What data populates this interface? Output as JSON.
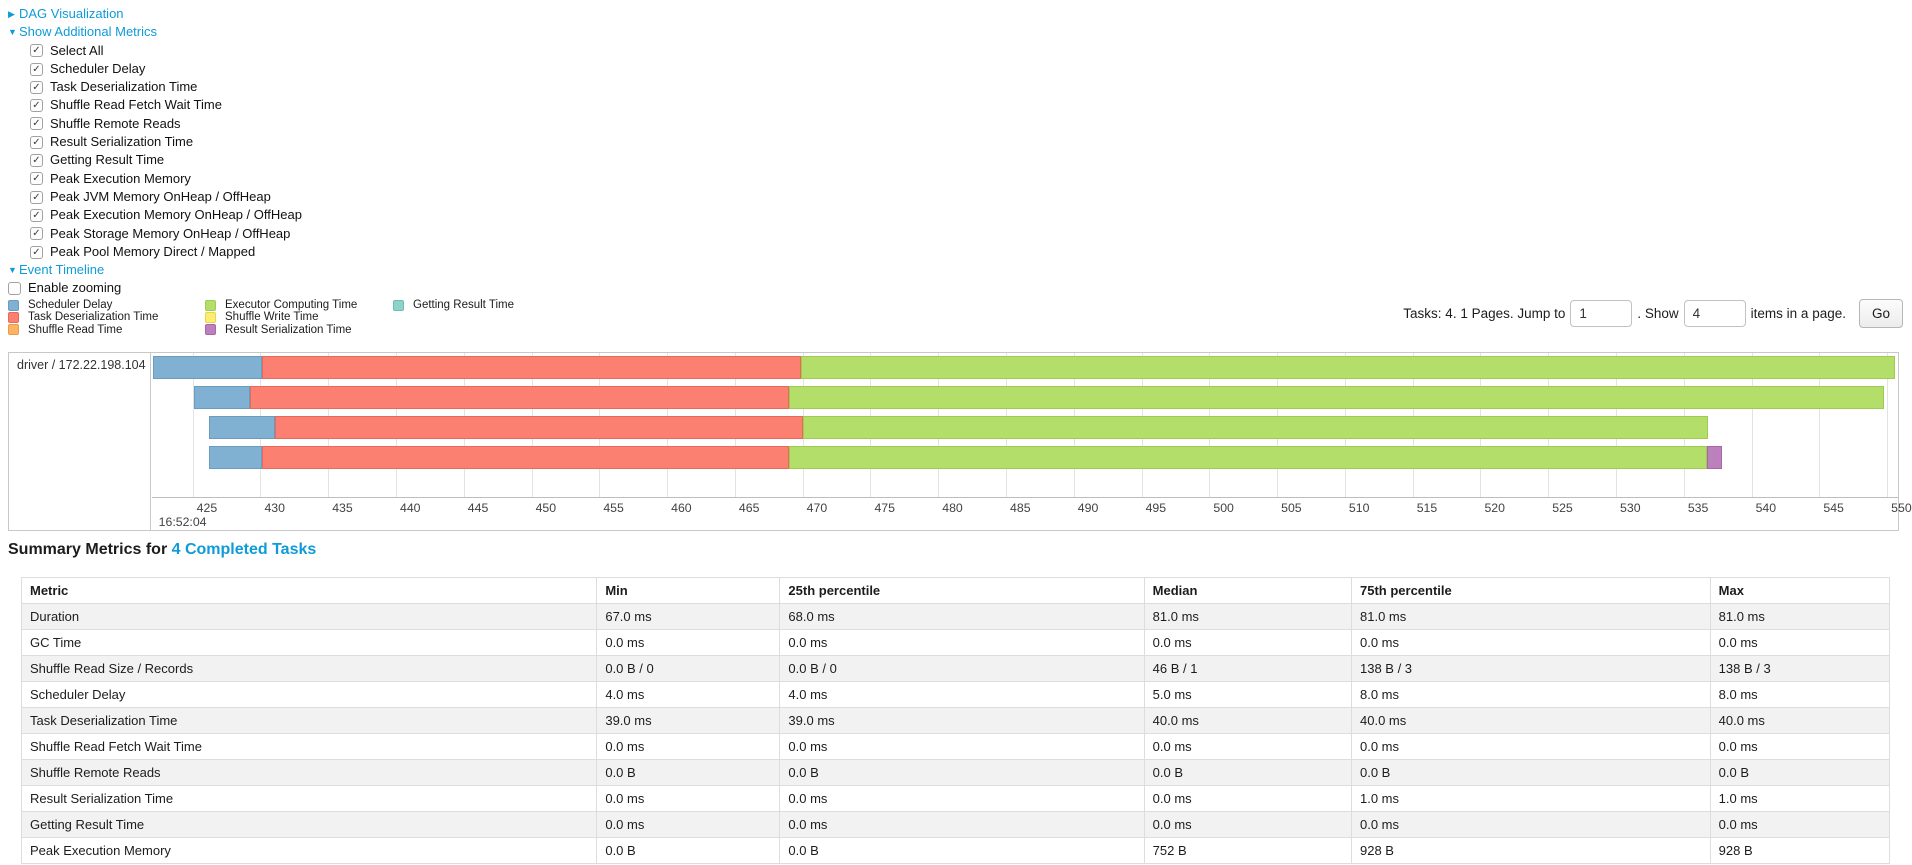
{
  "colors": {
    "link": "#0f9bd7",
    "scheduler_delay": {
      "fill": "#80B1D3",
      "border": "#6A9CC0"
    },
    "task_deserialization": {
      "fill": "#FB8072",
      "border": "#E8685A"
    },
    "shuffle_read": {
      "fill": "#FDB462",
      "border": "#E89B48"
    },
    "executor_computing": {
      "fill": "#B3DE69",
      "border": "#9FCB50"
    },
    "shuffle_write": {
      "fill": "#FFED6F",
      "border": "#E5D455"
    },
    "result_serialization": {
      "fill": "#BC80BD",
      "border": "#A667A8"
    },
    "getting_result": {
      "fill": "#8DD3C7",
      "border": "#72BDB0"
    }
  },
  "icons": {
    "collapsed_arrow": "▶",
    "expanded_arrow": "▼",
    "check": "✓"
  },
  "sections": {
    "dag_label": "DAG Visualization",
    "metrics_label": "Show Additional Metrics",
    "event_timeline_label": "Event Timeline",
    "enable_zooming_label": "Enable zooming"
  },
  "metric_checkboxes": [
    "Select All",
    "Scheduler Delay",
    "Task Deserialization Time",
    "Shuffle Read Fetch Wait Time",
    "Shuffle Remote Reads",
    "Result Serialization Time",
    "Getting Result Time",
    "Peak Execution Memory",
    "Peak JVM Memory OnHeap / OffHeap",
    "Peak Execution Memory OnHeap / OffHeap",
    "Peak Storage Memory OnHeap / OffHeap",
    "Peak Pool Memory Direct / Mapped"
  ],
  "legend": {
    "columns": [
      [
        {
          "label": "Scheduler Delay",
          "color": "scheduler_delay"
        },
        {
          "label": "Task Deserialization Time",
          "color": "task_deserialization"
        },
        {
          "label": "Shuffle Read Time",
          "color": "shuffle_read"
        }
      ],
      [
        {
          "label": "Executor Computing Time",
          "color": "executor_computing"
        },
        {
          "label": "Shuffle Write Time",
          "color": "shuffle_write"
        },
        {
          "label": "Result Serialization Time",
          "color": "result_serialization"
        }
      ],
      [
        {
          "label": "Getting Result Time",
          "color": "getting_result"
        }
      ]
    ]
  },
  "pagination": {
    "prefix": "Tasks: 4. 1 Pages. Jump to",
    "jump_value": "1",
    "middle": ". Show",
    "show_value": "4",
    "suffix": "items in a page.",
    "go_label": "Go"
  },
  "timeline": {
    "group_label": "driver / 172.22.198.104",
    "axis": {
      "min": 422,
      "max": 550.8,
      "tick_start": 425,
      "tick_end": 550,
      "tick_step": 5,
      "major_label": "16:52:04"
    },
    "tasks": [
      {
        "segments": [
          {
            "type": "scheduler_delay",
            "start": 422.1,
            "end": 430.1
          },
          {
            "type": "task_deserialization",
            "start": 430.1,
            "end": 469.9
          },
          {
            "type": "executor_computing",
            "start": 469.9,
            "end": 550.6
          }
        ]
      },
      {
        "segments": [
          {
            "type": "scheduler_delay",
            "start": 425.1,
            "end": 429.2
          },
          {
            "type": "task_deserialization",
            "start": 429.2,
            "end": 469.0
          },
          {
            "type": "executor_computing",
            "start": 469.0,
            "end": 549.8
          }
        ]
      },
      {
        "segments": [
          {
            "type": "scheduler_delay",
            "start": 426.2,
            "end": 431.1
          },
          {
            "type": "task_deserialization",
            "start": 431.1,
            "end": 470.0
          },
          {
            "type": "executor_computing",
            "start": 470.0,
            "end": 536.8
          }
        ]
      },
      {
        "segments": [
          {
            "type": "scheduler_delay",
            "start": 426.2,
            "end": 430.1
          },
          {
            "type": "task_deserialization",
            "start": 430.1,
            "end": 469.0
          },
          {
            "type": "executor_computing",
            "start": 469.0,
            "end": 536.7
          },
          {
            "type": "result_serialization",
            "start": 536.7,
            "end": 537.8
          }
        ]
      }
    ]
  },
  "summary": {
    "title_prefix": "Summary Metrics for",
    "title_link": "4 Completed Tasks",
    "headers": [
      "Metric",
      "Min",
      "25th percentile",
      "Median",
      "75th percentile",
      "Max"
    ],
    "col_widths": [
      "30.8%",
      "9.8%",
      "19.5%",
      "11.1%",
      "19.2%",
      "9.6%"
    ],
    "rows": [
      [
        "Duration",
        "67.0 ms",
        "68.0 ms",
        "81.0 ms",
        "81.0 ms",
        "81.0 ms"
      ],
      [
        "GC Time",
        "0.0 ms",
        "0.0 ms",
        "0.0 ms",
        "0.0 ms",
        "0.0 ms"
      ],
      [
        "Shuffle Read Size / Records",
        "0.0 B / 0",
        "0.0 B / 0",
        "46 B / 1",
        "138 B / 3",
        "138 B / 3"
      ],
      [
        "Scheduler Delay",
        "4.0 ms",
        "4.0 ms",
        "5.0 ms",
        "8.0 ms",
        "8.0 ms"
      ],
      [
        "Task Deserialization Time",
        "39.0 ms",
        "39.0 ms",
        "40.0 ms",
        "40.0 ms",
        "40.0 ms"
      ],
      [
        "Shuffle Read Fetch Wait Time",
        "0.0 ms",
        "0.0 ms",
        "0.0 ms",
        "0.0 ms",
        "0.0 ms"
      ],
      [
        "Shuffle Remote Reads",
        "0.0 B",
        "0.0 B",
        "0.0 B",
        "0.0 B",
        "0.0 B"
      ],
      [
        "Result Serialization Time",
        "0.0 ms",
        "0.0 ms",
        "0.0 ms",
        "1.0 ms",
        "1.0 ms"
      ],
      [
        "Getting Result Time",
        "0.0 ms",
        "0.0 ms",
        "0.0 ms",
        "0.0 ms",
        "0.0 ms"
      ],
      [
        "Peak Execution Memory",
        "0.0 B",
        "0.0 B",
        "752 B",
        "928 B",
        "928 B"
      ]
    ]
  }
}
